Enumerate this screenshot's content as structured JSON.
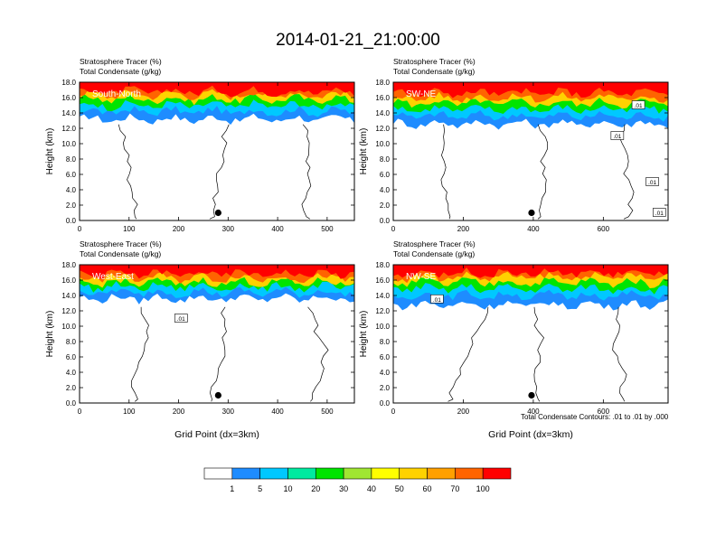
{
  "figure": {
    "title": "2014-01-21_21:00:00",
    "footnote": "Total Condensate Contours: .01 to .01 by .000"
  },
  "colors": {
    "levels": [
      "#ffffff",
      "#1e8cff",
      "#00c8ff",
      "#00eaa0",
      "#00e400",
      "#a0e632",
      "#ffff00",
      "#ffd200",
      "#ffa000",
      "#ff6400",
      "#ff0000"
    ],
    "contour": "#000000",
    "marker": "#000000"
  },
  "chart_data": [
    {
      "type": "heatmap",
      "panel": "top-left",
      "title_line1": "Stratosphere Tracer   (%)",
      "title_line2": "Total Condensate   (g/kg)",
      "label": "South-North",
      "xlabel": "",
      "ylabel": "Height (km)",
      "xlim": [
        0,
        555
      ],
      "ylim": [
        0,
        18
      ],
      "xticks": [
        0,
        100,
        200,
        300,
        400,
        500
      ],
      "yticks": [
        "0.0",
        "2.0",
        "4.0",
        "6.0",
        "8.0",
        "10.0",
        "12.0",
        "14.0",
        "16.0",
        "18.0"
      ],
      "marker": [
        280,
        1.0
      ],
      "contour_labels": [],
      "tracer_bands": [
        {
          "percent": 100,
          "base_km": 16.8
        },
        {
          "percent": 70,
          "base_km": 16.4
        },
        {
          "percent": 50,
          "base_km": 15.8
        },
        {
          "percent": 20,
          "base_km": 15.0
        },
        {
          "percent": 5,
          "base_km": 14.2
        },
        {
          "percent": 1,
          "base_km": 13.2
        }
      ]
    },
    {
      "type": "heatmap",
      "panel": "top-right",
      "title_line1": "Stratosphere Tracer   (%)",
      "title_line2": "Total Condensate   (g/kg)",
      "label": "SW-NE",
      "xlabel": "",
      "ylabel": "Height (km)",
      "xlim": [
        0,
        785
      ],
      "ylim": [
        0,
        18
      ],
      "xticks": [
        0,
        200,
        400,
        600
      ],
      "yticks": [
        "0.0",
        "2.0",
        "4.0",
        "6.0",
        "8.0",
        "10.0",
        "12.0",
        "14.0",
        "16.0",
        "18.0"
      ],
      "marker": [
        395,
        1.0
      ],
      "contour_labels": [
        {
          "text": ".01",
          "x": 700,
          "y": 15.0
        },
        {
          "text": ".01",
          "x": 640,
          "y": 11.0
        },
        {
          "text": ".01",
          "x": 740,
          "y": 5.0
        },
        {
          "text": ".01",
          "x": 760,
          "y": 1.0
        }
      ],
      "tracer_bands": [
        {
          "percent": 100,
          "base_km": 16.6
        },
        {
          "percent": 70,
          "base_km": 16.0
        },
        {
          "percent": 50,
          "base_km": 15.3
        },
        {
          "percent": 20,
          "base_km": 14.5
        },
        {
          "percent": 5,
          "base_km": 13.6
        },
        {
          "percent": 1,
          "base_km": 12.6
        }
      ]
    },
    {
      "type": "heatmap",
      "panel": "bottom-left",
      "title_line1": "Stratosphere Tracer   (%)",
      "title_line2": "Total Condensate   (g/kg)",
      "label": "West-East",
      "xlabel": "Grid Point (dx=3km)",
      "ylabel": "Height (km)",
      "xlim": [
        0,
        555
      ],
      "ylim": [
        0,
        18
      ],
      "xticks": [
        0,
        100,
        200,
        300,
        400,
        500
      ],
      "yticks": [
        "0.0",
        "2.0",
        "4.0",
        "6.0",
        "8.0",
        "10.0",
        "12.0",
        "14.0",
        "16.0",
        "18.0"
      ],
      "marker": [
        280,
        1.0
      ],
      "contour_labels": [
        {
          "text": ".01",
          "x": 205,
          "y": 11.0
        }
      ],
      "tracer_bands": [
        {
          "percent": 100,
          "base_km": 16.8
        },
        {
          "percent": 70,
          "base_km": 16.3
        },
        {
          "percent": 50,
          "base_km": 15.7
        },
        {
          "percent": 20,
          "base_km": 15.1
        },
        {
          "percent": 5,
          "base_km": 14.4
        },
        {
          "percent": 1,
          "base_km": 13.6
        }
      ]
    },
    {
      "type": "heatmap",
      "panel": "bottom-right",
      "title_line1": "Stratosphere Tracer   (%)",
      "title_line2": "Total Condensate   (g/kg)",
      "label": "NW-SE",
      "xlabel": "Grid Point (dx=3km)",
      "ylabel": "Height (km)",
      "xlim": [
        0,
        785
      ],
      "ylim": [
        0,
        18
      ],
      "xticks": [
        0,
        200,
        400,
        600
      ],
      "yticks": [
        "0.0",
        "2.0",
        "4.0",
        "6.0",
        "8.0",
        "10.0",
        "12.0",
        "14.0",
        "16.0",
        "18.0"
      ],
      "marker": [
        395,
        1.0
      ],
      "contour_labels": [
        {
          "text": ".01",
          "x": 125,
          "y": 13.5
        }
      ],
      "tracer_bands": [
        {
          "percent": 100,
          "base_km": 16.9
        },
        {
          "percent": 70,
          "base_km": 16.4
        },
        {
          "percent": 50,
          "base_km": 15.7
        },
        {
          "percent": 20,
          "base_km": 14.9
        },
        {
          "percent": 5,
          "base_km": 14.0
        },
        {
          "percent": 1,
          "base_km": 12.8
        }
      ]
    }
  ],
  "colorbar": {
    "labels": [
      "1",
      "5",
      "10",
      "20",
      "30",
      "40",
      "50",
      "60",
      "70",
      "100"
    ]
  }
}
